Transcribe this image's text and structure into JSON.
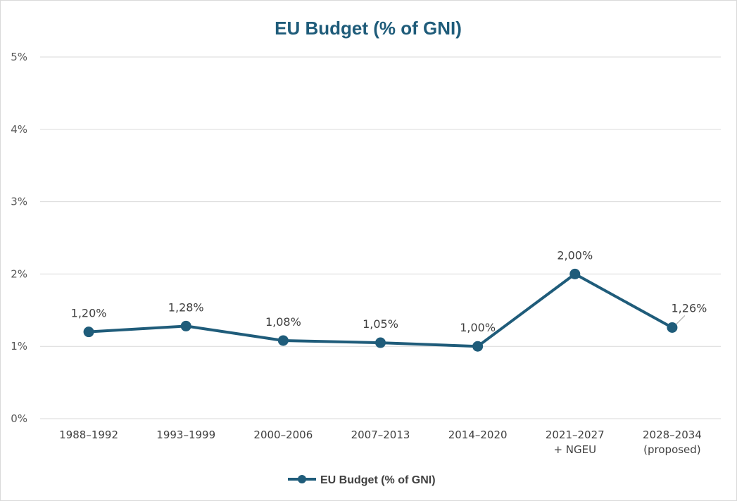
{
  "chart_data": {
    "type": "line",
    "title": "EU Budget (% of GNI)",
    "categories": [
      [
        "1988–1992"
      ],
      [
        "1993–1999"
      ],
      [
        "2000–2006"
      ],
      [
        "2007–2013"
      ],
      [
        "2014–2020"
      ],
      [
        "2021–2027",
        "+ NGEU"
      ],
      [
        "2028–2034",
        "(proposed)"
      ]
    ],
    "series": [
      {
        "name": "EU Budget (% of GNI)",
        "values": [
          1.2,
          1.28,
          1.08,
          1.05,
          1.0,
          2.0,
          1.26
        ],
        "labels": [
          "1,20%",
          "1,28%",
          "1,08%",
          "1,05%",
          "1,00%",
          "2,00%",
          "1,26%"
        ],
        "color": "#1f5c7a"
      }
    ],
    "yticks": [
      0,
      1,
      2,
      3,
      4,
      5
    ],
    "ytick_labels": [
      "0%",
      "1%",
      "2%",
      "3%",
      "4%",
      "5%"
    ],
    "ylim": [
      0,
      5
    ],
    "grid": true,
    "legend": "bottom-center",
    "colors": {
      "title": "#1f5c7a",
      "line": "#1f5c7a",
      "grid": "#d9d9d9"
    }
  }
}
